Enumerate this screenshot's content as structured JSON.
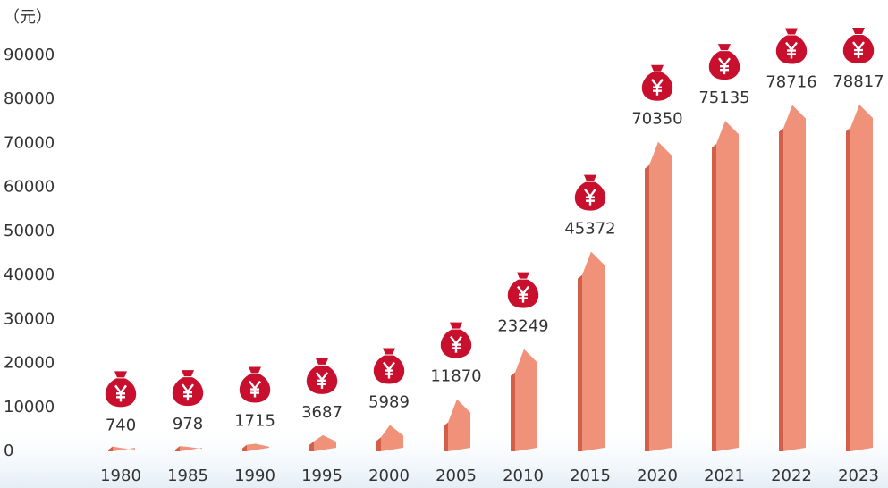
{
  "chart_data": {
    "type": "bar",
    "y_label": "（元）",
    "categories": [
      "1980",
      "1985",
      "1990",
      "1995",
      "2000",
      "2005",
      "2010",
      "2015",
      "2020",
      "2021",
      "2022",
      "2023"
    ],
    "values": [
      740,
      978,
      1715,
      3687,
      5989,
      11870,
      23249,
      45372,
      70350,
      75135,
      78716,
      78817
    ],
    "color": "#f0927a",
    "side_color": "#d35f48",
    "icon_color": "#c8102e",
    "ylim": [
      0,
      90000
    ],
    "yticks": [
      0,
      10000,
      20000,
      30000,
      40000,
      50000,
      60000,
      70000,
      80000,
      90000
    ],
    "grid": false
  }
}
